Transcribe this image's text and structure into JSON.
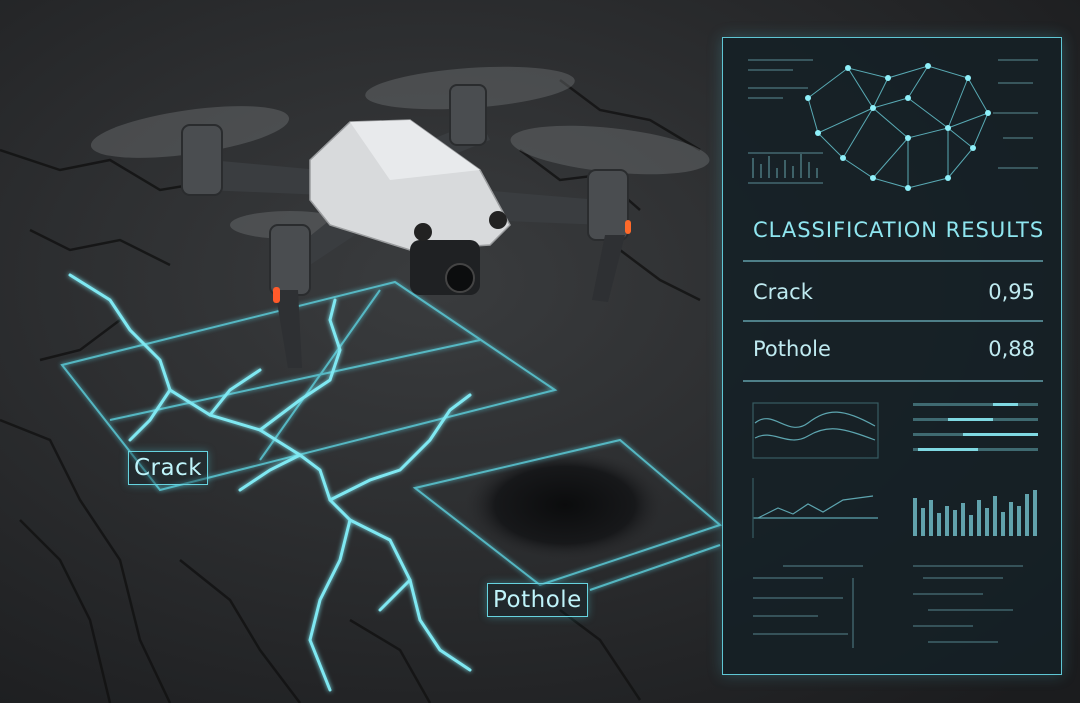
{
  "labels": {
    "crack_tag": "Crack",
    "pothole_tag": "Pothole"
  },
  "panel": {
    "title": "CLASSIFICATION RESULTS",
    "results": [
      {
        "label": "Crack",
        "score": "0,95"
      },
      {
        "label": "Pothole",
        "score": "0,88"
      }
    ]
  },
  "colors": {
    "accent": "#66d3df",
    "asphalt": "#2a2c2e",
    "drone_body": "#d8dadc",
    "drone_arm": "#3a3d40",
    "indicator": "#ff5a2a"
  },
  "icons": [
    "neural-network-icon",
    "line-chart-icon",
    "bar-chart-icon",
    "progress-bars-icon"
  ]
}
